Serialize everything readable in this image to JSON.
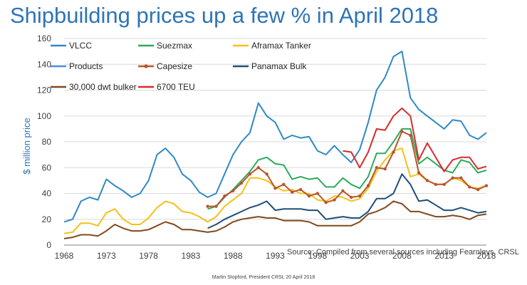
{
  "title": "Shipbuilding prices up a few % in April 2018",
  "footer": "Martin Stopford, President CRSL 20 April 2018",
  "chart_data": {
    "type": "line",
    "title": "Shipbuilding prices up a few % in April 2018",
    "xlabel": "",
    "ylabel": "$ million price",
    "xlim": [
      1968,
      2018
    ],
    "ylim": [
      0,
      160
    ],
    "yticks": [
      0,
      20,
      40,
      60,
      80,
      100,
      120,
      140,
      160
    ],
    "xticks": [
      1968,
      1973,
      1978,
      1983,
      1988,
      1993,
      1998,
      2003,
      2008,
      2013,
      2018
    ],
    "source_note": "Source: Compiled from several sources including  Fearnleys, CRSL",
    "series": [
      {
        "name": "VLCC",
        "color": "#2e8ac8",
        "marker": false,
        "x": [
          1968,
          1969,
          1970,
          1971,
          1972,
          1973,
          1974,
          1975,
          1976,
          1977,
          1978,
          1979,
          1980,
          1981,
          1982,
          1983,
          1984,
          1985,
          1986,
          1987,
          1988,
          1989,
          1990,
          1991,
          1992,
          1993,
          1994,
          1995,
          1996,
          1997,
          1998,
          1999,
          2000,
          2001,
          2002,
          2003,
          2004,
          2005,
          2006,
          2007,
          2008,
          2009,
          2010,
          2011,
          2012,
          2013,
          2014,
          2015,
          2016,
          2017,
          2018
        ],
        "y": [
          18,
          20,
          34,
          37,
          35,
          51,
          46,
          42,
          37,
          40,
          50,
          70,
          75,
          68,
          55,
          50,
          41,
          37,
          40,
          55,
          70,
          80,
          87,
          110,
          100,
          95,
          82,
          85,
          83,
          84,
          73,
          70,
          77,
          70,
          64,
          74,
          95,
          120,
          130,
          146,
          150,
          114,
          105,
          100,
          95,
          90,
          97,
          96,
          85,
          82,
          87
        ]
      },
      {
        "name": "Suezmax",
        "color": "#2eaa5c",
        "marker": false,
        "x": [
          1985,
          1986,
          1987,
          1988,
          1989,
          1990,
          1991,
          1992,
          1993,
          1994,
          1995,
          1996,
          1997,
          1998,
          1999,
          2000,
          2001,
          2002,
          2003,
          2004,
          2005,
          2006,
          2007,
          2008,
          2009,
          2010,
          2011,
          2012,
          2013,
          2014,
          2015,
          2016,
          2017,
          2018
        ],
        "y": [
          28,
          30,
          37,
          43,
          50,
          57,
          66,
          68,
          63,
          62,
          51,
          53,
          51,
          52,
          45,
          45,
          52,
          47,
          44,
          53,
          71,
          71,
          80,
          90,
          90,
          63,
          68,
          63,
          58,
          56,
          66,
          64,
          56,
          58
        ]
      },
      {
        "name": "Aframax Tanker",
        "color": "#f2c218",
        "marker": false,
        "x": [
          1968,
          1969,
          1970,
          1971,
          1972,
          1973,
          1974,
          1975,
          1976,
          1977,
          1978,
          1979,
          1980,
          1981,
          1982,
          1983,
          1984,
          1985,
          1986,
          1987,
          1988,
          1989,
          1990,
          1991,
          1992,
          1993,
          1994,
          1995,
          1996,
          1997,
          1998,
          1999,
          2000,
          2001,
          2002,
          2003,
          2004,
          2005,
          2006,
          2007,
          2008,
          2009,
          2010,
          2011,
          2012,
          2013,
          2014,
          2015,
          2016,
          2017,
          2018
        ],
        "y": [
          9,
          10,
          17,
          17,
          15,
          25,
          28,
          20,
          16,
          16,
          21,
          29,
          34,
          32,
          26,
          25,
          22,
          18,
          22,
          30,
          35,
          40,
          52,
          52,
          50,
          45,
          42,
          43,
          40,
          40,
          35,
          34,
          38,
          37,
          34,
          36,
          44,
          57,
          66,
          73,
          75,
          53,
          55,
          50,
          47,
          47,
          52,
          50,
          45,
          44,
          46
        ]
      },
      {
        "name": "Products",
        "color": "#4a90d9",
        "marker": false,
        "x": [],
        "y": []
      },
      {
        "name": "Capesize",
        "color": "#b8552a",
        "marker": true,
        "x": [
          1985,
          1986,
          1987,
          1988,
          1989,
          1990,
          1991,
          1992,
          1993,
          1994,
          1995,
          1996,
          1997,
          1998,
          1999,
          2000,
          2001,
          2002,
          2003,
          2004,
          2005,
          2006,
          2007,
          2008,
          2009,
          2010,
          2011,
          2012,
          2013,
          2014,
          2015,
          2016,
          2017,
          2018
        ],
        "y": [
          30,
          30,
          38,
          42,
          48,
          55,
          60,
          55,
          44,
          47,
          41,
          43,
          38,
          40,
          33,
          35,
          42,
          37,
          38,
          46,
          60,
          59,
          72,
          88,
          85,
          56,
          50,
          47,
          47,
          52,
          52,
          45,
          43,
          46
        ]
      },
      {
        "name": "Panamax Bulk",
        "color": "#1f4e79",
        "marker": false,
        "x": [
          1985,
          1986,
          1987,
          1988,
          1989,
          1990,
          1991,
          1992,
          1993,
          1994,
          1995,
          1996,
          1997,
          1998,
          1999,
          2000,
          2001,
          2002,
          2003,
          2004,
          2005,
          2006,
          2007,
          2008,
          2009,
          2010,
          2011,
          2012,
          2013,
          2014,
          2015,
          2016,
          2017,
          2018
        ],
        "y": [
          13,
          16,
          20,
          23,
          26,
          29,
          31,
          34,
          27,
          28,
          28,
          28,
          27,
          27,
          20,
          21,
          22,
          21,
          21,
          26,
          36,
          36,
          40,
          55,
          47,
          34,
          35,
          31,
          27,
          27,
          29,
          27,
          25,
          26
        ]
      },
      {
        "name": "30,000 dwt bulker",
        "color": "#7f4a1f",
        "marker": false,
        "x": [
          1968,
          1969,
          1970,
          1971,
          1972,
          1973,
          1974,
          1975,
          1976,
          1977,
          1978,
          1979,
          1980,
          1981,
          1982,
          1983,
          1984,
          1985,
          1986,
          1987,
          1988,
          1989,
          1990,
          1991,
          1992,
          1993,
          1994,
          1995,
          1996,
          1997,
          1998,
          1999,
          2000,
          2001,
          2002,
          2003,
          2004,
          2005,
          2006,
          2007,
          2008,
          2009,
          2010,
          2011,
          2012,
          2013,
          2014,
          2015,
          2016,
          2017,
          2018
        ],
        "y": [
          5,
          6,
          8,
          8,
          7,
          11,
          16,
          13,
          11,
          11,
          12,
          15,
          18,
          16,
          12,
          12,
          11,
          10,
          11,
          14,
          18,
          20,
          21,
          22,
          21,
          21,
          19,
          19,
          19,
          18,
          15,
          15,
          15,
          15,
          15,
          18,
          24,
          26,
          29,
          34,
          32,
          26,
          26,
          24,
          22,
          22,
          23,
          22,
          20,
          23,
          24
        ]
      },
      {
        "name": "6700 TEU",
        "color": "#d92b2b",
        "marker": false,
        "x": [
          2001,
          2002,
          2003,
          2004,
          2005,
          2006,
          2007,
          2008,
          2009,
          2010,
          2011,
          2012,
          2013,
          2014,
          2015,
          2016,
          2017,
          2018
        ],
        "y": [
          73,
          72,
          60,
          72,
          90,
          89,
          100,
          106,
          100,
          66,
          79,
          68,
          57,
          66,
          68,
          68,
          59,
          61
        ]
      }
    ]
  }
}
